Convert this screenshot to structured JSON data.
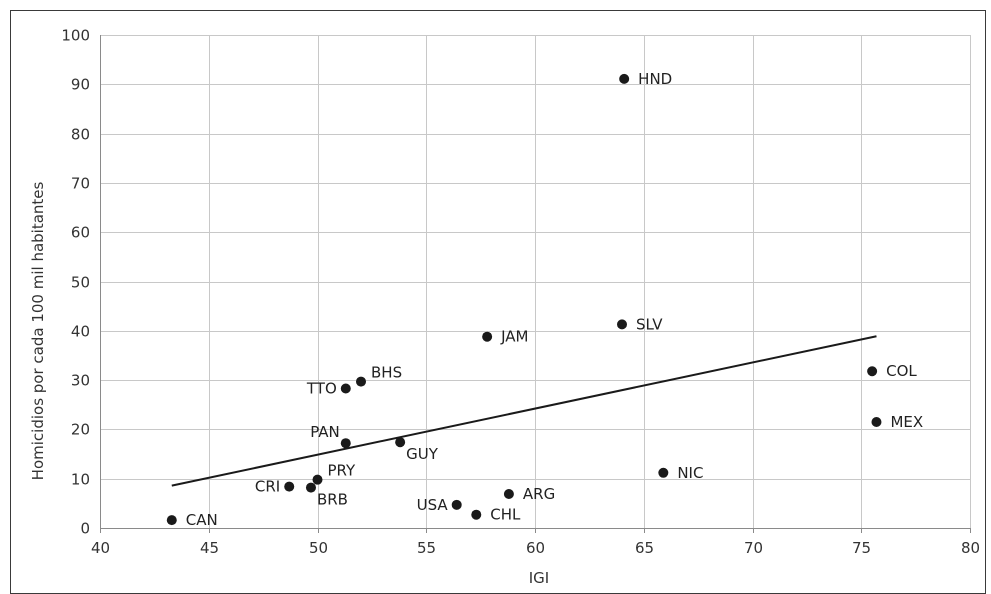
{
  "chart_data": {
    "type": "scatter",
    "title": "",
    "xlabel": "IGI",
    "ylabel": "Homicidios por cada 100 mil habitantes",
    "xlim": [
      40,
      80
    ],
    "ylim": [
      0,
      100
    ],
    "x_ticks": [
      "40",
      "45",
      "50",
      "55",
      "60",
      "65",
      "70",
      "75",
      "80"
    ],
    "y_ticks": [
      "0",
      "10",
      "20",
      "30",
      "40",
      "50",
      "60",
      "70",
      "80",
      "90",
      "100"
    ],
    "grid": "horizontal",
    "points": [
      {
        "label": "CAN",
        "x": 43.3,
        "y": 1.6,
        "label_side": "right"
      },
      {
        "label": "CRI",
        "x": 48.7,
        "y": 8.4,
        "label_side": "left"
      },
      {
        "label": "BRB",
        "x": 49.7,
        "y": 8.2,
        "label_side": "below-right"
      },
      {
        "label": "PRY",
        "x": 50.0,
        "y": 9.8,
        "label_side": "above-right"
      },
      {
        "label": "PAN",
        "x": 51.3,
        "y": 17.2,
        "label_side": "above-left"
      },
      {
        "label": "TTO",
        "x": 51.3,
        "y": 28.3,
        "label_side": "left"
      },
      {
        "label": "BHS",
        "x": 52.0,
        "y": 29.7,
        "label_side": "above-right"
      },
      {
        "label": "GUY",
        "x": 53.8,
        "y": 17.4,
        "label_side": "below-right"
      },
      {
        "label": "USA",
        "x": 56.4,
        "y": 4.7,
        "label_side": "left"
      },
      {
        "label": "CHL",
        "x": 57.3,
        "y": 2.7,
        "label_side": "right"
      },
      {
        "label": "JAM",
        "x": 57.8,
        "y": 38.8,
        "label_side": "right"
      },
      {
        "label": "ARG",
        "x": 58.8,
        "y": 6.9,
        "label_side": "right"
      },
      {
        "label": "SLV",
        "x": 64.0,
        "y": 41.3,
        "label_side": "right"
      },
      {
        "label": "HND",
        "x": 64.1,
        "y": 91.1,
        "label_side": "right"
      },
      {
        "label": "NIC",
        "x": 65.9,
        "y": 11.2,
        "label_side": "right"
      },
      {
        "label": "COL",
        "x": 75.5,
        "y": 31.8,
        "label_side": "right"
      },
      {
        "label": "MEX",
        "x": 75.7,
        "y": 21.5,
        "label_side": "right"
      }
    ],
    "trendline": {
      "x": [
        43.3,
        75.7
      ],
      "y": [
        8.6,
        38.9
      ]
    }
  }
}
